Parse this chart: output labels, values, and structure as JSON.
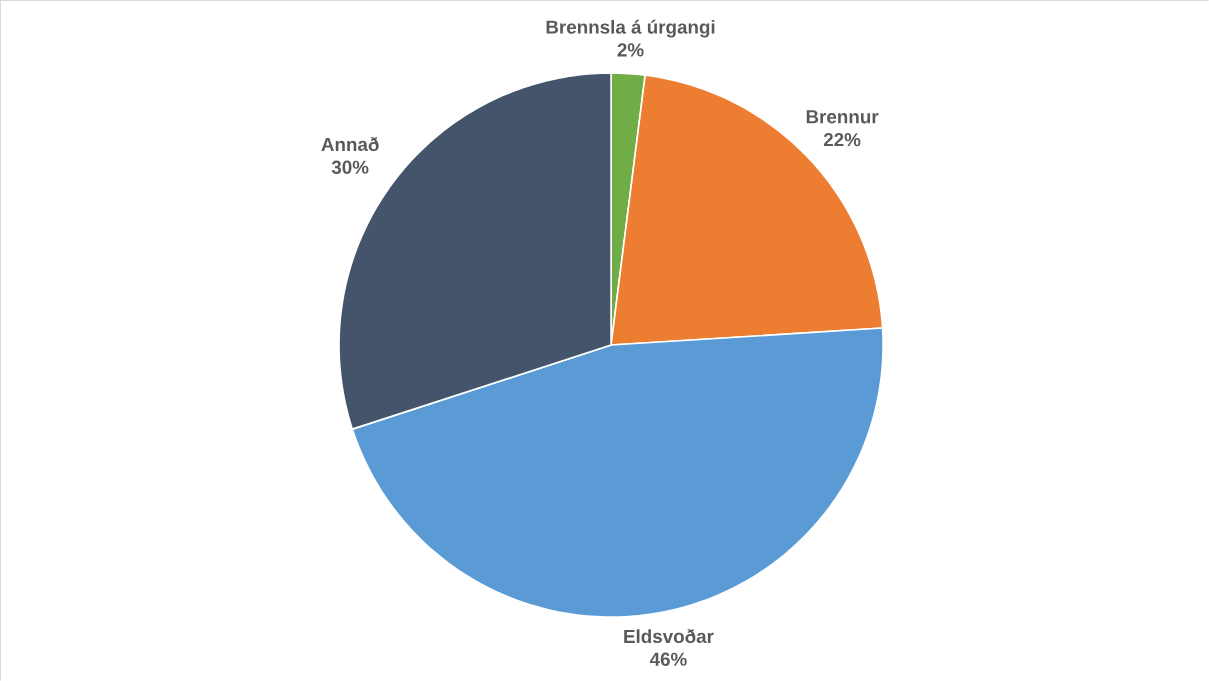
{
  "chart_data": {
    "type": "pie",
    "categories": [
      "Brennsla á úrgangi",
      "Brennur",
      "Eldsvoðar",
      "Annað"
    ],
    "values": [
      2,
      22,
      46,
      30
    ],
    "value_labels": [
      "2%",
      "22%",
      "46%",
      "30%"
    ],
    "colors": [
      "#70ad47",
      "#ed7d31",
      "#5b9bd5",
      "#44546a"
    ]
  }
}
